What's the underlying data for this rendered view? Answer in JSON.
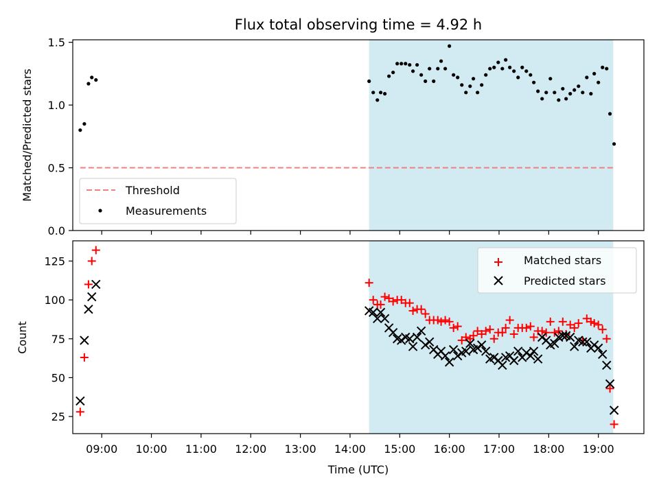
{
  "chart_data": {
    "title": "Flux total observing time = 4.92 h",
    "xlabel": "Time (UTC)",
    "x_ticks": [
      "09:00",
      "10:00",
      "11:00",
      "12:00",
      "13:00",
      "14:00",
      "15:00",
      "16:00",
      "17:00",
      "18:00",
      "19:00"
    ],
    "xlim": [
      "08:25",
      "19:55"
    ],
    "shaded_interval": [
      "14:23",
      "19:18"
    ],
    "shade_color": "#add8e6",
    "top": {
      "type": "scatter",
      "ylabel": "Matched/Predicted stars",
      "ylim": [
        0,
        1.52
      ],
      "yticks": [
        "0.0",
        "0.5",
        "1.0",
        "1.5"
      ],
      "threshold": {
        "name": "Threshold",
        "value": 0.5,
        "color": "#f08080",
        "x_range": [
          "08:34",
          "19:18"
        ]
      },
      "series": [
        {
          "name": "Measurements",
          "color": "#000000",
          "points": [
            [
              "08:34",
              0.8
            ],
            [
              "08:39",
              0.85
            ],
            [
              "08:44",
              1.17
            ],
            [
              "08:48",
              1.22
            ],
            [
              "08:53",
              1.2
            ],
            [
              "14:23",
              1.19
            ],
            [
              "14:28",
              1.1
            ],
            [
              "14:33",
              1.04
            ],
            [
              "14:37",
              1.1
            ],
            [
              "14:42",
              1.09
            ],
            [
              "14:47",
              1.23
            ],
            [
              "14:52",
              1.26
            ],
            [
              "14:57",
              1.33
            ],
            [
              "15:02",
              1.33
            ],
            [
              "15:07",
              1.33
            ],
            [
              "15:12",
              1.32
            ],
            [
              "15:16",
              1.27
            ],
            [
              "15:21",
              1.32
            ],
            [
              "15:26",
              1.24
            ],
            [
              "15:31",
              1.19
            ],
            [
              "15:36",
              1.29
            ],
            [
              "15:41",
              1.19
            ],
            [
              "15:46",
              1.29
            ],
            [
              "15:50",
              1.35
            ],
            [
              "15:55",
              1.29
            ],
            [
              "16:00",
              1.47
            ],
            [
              "16:05",
              1.24
            ],
            [
              "16:10",
              1.22
            ],
            [
              "16:15",
              1.16
            ],
            [
              "16:20",
              1.1
            ],
            [
              "16:25",
              1.15
            ],
            [
              "16:29",
              1.21
            ],
            [
              "16:34",
              1.1
            ],
            [
              "16:39",
              1.16
            ],
            [
              "16:44",
              1.24
            ],
            [
              "16:49",
              1.29
            ],
            [
              "16:54",
              1.3
            ],
            [
              "16:59",
              1.34
            ],
            [
              "17:04",
              1.29
            ],
            [
              "17:08",
              1.36
            ],
            [
              "17:13",
              1.3
            ],
            [
              "17:18",
              1.27
            ],
            [
              "17:23",
              1.22
            ],
            [
              "17:28",
              1.3
            ],
            [
              "17:33",
              1.27
            ],
            [
              "17:38",
              1.24
            ],
            [
              "17:42",
              1.18
            ],
            [
              "17:47",
              1.11
            ],
            [
              "17:52",
              1.05
            ],
            [
              "17:57",
              1.1
            ],
            [
              "18:02",
              1.21
            ],
            [
              "18:07",
              1.1
            ],
            [
              "18:12",
              1.04
            ],
            [
              "18:17",
              1.13
            ],
            [
              "18:21",
              1.05
            ],
            [
              "18:26",
              1.09
            ],
            [
              "18:31",
              1.12
            ],
            [
              "18:36",
              1.15
            ],
            [
              "18:41",
              1.1
            ],
            [
              "18:46",
              1.22
            ],
            [
              "18:51",
              1.09
            ],
            [
              "18:55",
              1.25
            ],
            [
              "19:00",
              1.18
            ],
            [
              "19:05",
              1.3
            ],
            [
              "19:10",
              1.29
            ],
            [
              "19:14",
              0.93
            ],
            [
              "19:19",
              0.69
            ]
          ]
        }
      ],
      "legend": {
        "placement": "lower-left",
        "entries": [
          "Threshold",
          "Measurements"
        ]
      }
    },
    "bottom": {
      "type": "scatter",
      "ylabel": "Count",
      "ylim": [
        14,
        138
      ],
      "yticks": [
        "25",
        "50",
        "75",
        "100",
        "125"
      ],
      "series": [
        {
          "name": "Matched stars",
          "marker": "+",
          "color": "#ff0000",
          "points": [
            [
              "08:34",
              28
            ],
            [
              "08:39",
              63
            ],
            [
              "08:44",
              110
            ],
            [
              "08:48",
              125
            ],
            [
              "08:53",
              132
            ],
            [
              "14:23",
              111
            ],
            [
              "14:28",
              100
            ],
            [
              "14:33",
              97
            ],
            [
              "14:37",
              97
            ],
            [
              "14:42",
              102
            ],
            [
              "14:47",
              101
            ],
            [
              "14:52",
              99
            ],
            [
              "14:57",
              100
            ],
            [
              "15:02",
              100
            ],
            [
              "15:07",
              98
            ],
            [
              "15:12",
              98
            ],
            [
              "15:16",
              93
            ],
            [
              "15:21",
              94
            ],
            [
              "15:26",
              94
            ],
            [
              "15:31",
              91
            ],
            [
              "15:36",
              87
            ],
            [
              "15:41",
              87
            ],
            [
              "15:46",
              87
            ],
            [
              "15:50",
              86
            ],
            [
              "15:55",
              87
            ],
            [
              "16:00",
              86
            ],
            [
              "16:05",
              82
            ],
            [
              "16:10",
              83
            ],
            [
              "16:15",
              74
            ],
            [
              "16:20",
              76
            ],
            [
              "16:25",
              75
            ],
            [
              "16:29",
              77
            ],
            [
              "16:34",
              80
            ],
            [
              "16:39",
              78
            ],
            [
              "16:44",
              80
            ],
            [
              "16:49",
              81
            ],
            [
              "16:54",
              75
            ],
            [
              "16:59",
              79
            ],
            [
              "17:04",
              79
            ],
            [
              "17:08",
              82
            ],
            [
              "17:13",
              87
            ],
            [
              "17:18",
              78
            ],
            [
              "17:23",
              82
            ],
            [
              "17:28",
              82
            ],
            [
              "17:33",
              82
            ],
            [
              "17:38",
              83
            ],
            [
              "17:42",
              76
            ],
            [
              "17:47",
              80
            ],
            [
              "17:52",
              80
            ],
            [
              "17:57",
              79
            ],
            [
              "18:02",
              86
            ],
            [
              "18:07",
              79
            ],
            [
              "18:12",
              80
            ],
            [
              "18:17",
              86
            ],
            [
              "18:21",
              78
            ],
            [
              "18:26",
              84
            ],
            [
              "18:31",
              82
            ],
            [
              "18:36",
              85
            ],
            [
              "18:41",
              74
            ],
            [
              "18:46",
              88
            ],
            [
              "18:51",
              86
            ],
            [
              "18:55",
              85
            ],
            [
              "19:00",
              84
            ],
            [
              "19:05",
              81
            ],
            [
              "19:10",
              75
            ],
            [
              "19:14",
              43
            ],
            [
              "19:19",
              20
            ]
          ]
        },
        {
          "name": "Predicted stars",
          "marker": "x",
          "color": "#000000",
          "points": [
            [
              "08:34",
              35
            ],
            [
              "08:39",
              74
            ],
            [
              "08:44",
              94
            ],
            [
              "08:48",
              102
            ],
            [
              "08:53",
              110
            ],
            [
              "14:23",
              93
            ],
            [
              "14:28",
              92
            ],
            [
              "14:33",
              88
            ],
            [
              "14:37",
              92
            ],
            [
              "14:42",
              88
            ],
            [
              "14:47",
              82
            ],
            [
              "14:52",
              79
            ],
            [
              "14:57",
              75
            ],
            [
              "15:02",
              74
            ],
            [
              "15:07",
              76
            ],
            [
              "15:12",
              75
            ],
            [
              "15:16",
              70
            ],
            [
              "15:21",
              76
            ],
            [
              "15:26",
              80
            ],
            [
              "15:31",
              71
            ],
            [
              "15:36",
              73
            ],
            [
              "15:41",
              68
            ],
            [
              "15:46",
              65
            ],
            [
              "15:50",
              67
            ],
            [
              "15:55",
              64
            ],
            [
              "16:00",
              60
            ],
            [
              "16:05",
              68
            ],
            [
              "16:10",
              64
            ],
            [
              "16:15",
              66
            ],
            [
              "16:20",
              67
            ],
            [
              "16:25",
              72
            ],
            [
              "16:29",
              68
            ],
            [
              "16:34",
              69
            ],
            [
              "16:39",
              71
            ],
            [
              "16:44",
              67
            ],
            [
              "16:49",
              62
            ],
            [
              "16:54",
              63
            ],
            [
              "16:59",
              61
            ],
            [
              "17:04",
              58
            ],
            [
              "17:08",
              63
            ],
            [
              "17:13",
              64
            ],
            [
              "17:18",
              61
            ],
            [
              "17:23",
              67
            ],
            [
              "17:28",
              63
            ],
            [
              "17:33",
              66
            ],
            [
              "17:38",
              64
            ],
            [
              "17:42",
              67
            ],
            [
              "17:47",
              62
            ],
            [
              "17:52",
              76
            ],
            [
              "17:57",
              74
            ],
            [
              "18:02",
              71
            ],
            [
              "18:07",
              72
            ],
            [
              "18:12",
              76
            ],
            [
              "18:17",
              77
            ],
            [
              "18:21",
              77
            ],
            [
              "18:26",
              76
            ],
            [
              "18:31",
              70
            ],
            [
              "18:36",
              74
            ],
            [
              "18:41",
              73
            ],
            [
              "18:46",
              73
            ],
            [
              "18:51",
              69
            ],
            [
              "18:55",
              71
            ],
            [
              "19:00",
              69
            ],
            [
              "19:05",
              65
            ],
            [
              "19:10",
              58
            ],
            [
              "19:14",
              46
            ],
            [
              "19:19",
              29
            ]
          ]
        }
      ],
      "legend": {
        "placement": "upper-right",
        "entries": [
          "Matched stars",
          "Predicted stars"
        ]
      }
    }
  }
}
